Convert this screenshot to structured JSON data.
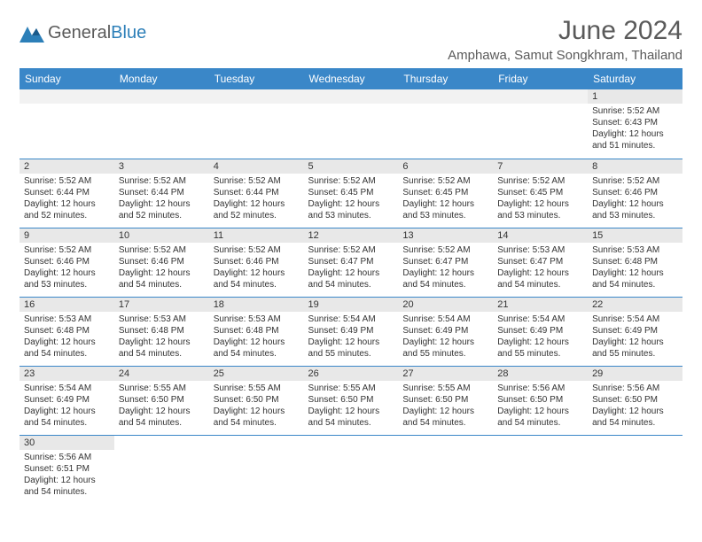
{
  "logo": {
    "text1": "General",
    "text2": "Blue"
  },
  "title": "June 2024",
  "location": "Amphawa, Samut Songkhram, Thailand",
  "colors": {
    "header_bg": "#3a87c8",
    "header_fg": "#ffffff",
    "daynum_bg": "#e8e8e8",
    "border": "#3a87c8",
    "text": "#333333",
    "title_text": "#5a5a5a"
  },
  "weekdays": [
    "Sunday",
    "Monday",
    "Tuesday",
    "Wednesday",
    "Thursday",
    "Friday",
    "Saturday"
  ],
  "weeks": [
    [
      null,
      null,
      null,
      null,
      null,
      null,
      {
        "n": 1,
        "sr": "5:52 AM",
        "ss": "6:43 PM",
        "dl": "12 hours and 51 minutes."
      }
    ],
    [
      {
        "n": 2,
        "sr": "5:52 AM",
        "ss": "6:44 PM",
        "dl": "12 hours and 52 minutes."
      },
      {
        "n": 3,
        "sr": "5:52 AM",
        "ss": "6:44 PM",
        "dl": "12 hours and 52 minutes."
      },
      {
        "n": 4,
        "sr": "5:52 AM",
        "ss": "6:44 PM",
        "dl": "12 hours and 52 minutes."
      },
      {
        "n": 5,
        "sr": "5:52 AM",
        "ss": "6:45 PM",
        "dl": "12 hours and 53 minutes."
      },
      {
        "n": 6,
        "sr": "5:52 AM",
        "ss": "6:45 PM",
        "dl": "12 hours and 53 minutes."
      },
      {
        "n": 7,
        "sr": "5:52 AM",
        "ss": "6:45 PM",
        "dl": "12 hours and 53 minutes."
      },
      {
        "n": 8,
        "sr": "5:52 AM",
        "ss": "6:46 PM",
        "dl": "12 hours and 53 minutes."
      }
    ],
    [
      {
        "n": 9,
        "sr": "5:52 AM",
        "ss": "6:46 PM",
        "dl": "12 hours and 53 minutes."
      },
      {
        "n": 10,
        "sr": "5:52 AM",
        "ss": "6:46 PM",
        "dl": "12 hours and 54 minutes."
      },
      {
        "n": 11,
        "sr": "5:52 AM",
        "ss": "6:46 PM",
        "dl": "12 hours and 54 minutes."
      },
      {
        "n": 12,
        "sr": "5:52 AM",
        "ss": "6:47 PM",
        "dl": "12 hours and 54 minutes."
      },
      {
        "n": 13,
        "sr": "5:52 AM",
        "ss": "6:47 PM",
        "dl": "12 hours and 54 minutes."
      },
      {
        "n": 14,
        "sr": "5:53 AM",
        "ss": "6:47 PM",
        "dl": "12 hours and 54 minutes."
      },
      {
        "n": 15,
        "sr": "5:53 AM",
        "ss": "6:48 PM",
        "dl": "12 hours and 54 minutes."
      }
    ],
    [
      {
        "n": 16,
        "sr": "5:53 AM",
        "ss": "6:48 PM",
        "dl": "12 hours and 54 minutes."
      },
      {
        "n": 17,
        "sr": "5:53 AM",
        "ss": "6:48 PM",
        "dl": "12 hours and 54 minutes."
      },
      {
        "n": 18,
        "sr": "5:53 AM",
        "ss": "6:48 PM",
        "dl": "12 hours and 54 minutes."
      },
      {
        "n": 19,
        "sr": "5:54 AM",
        "ss": "6:49 PM",
        "dl": "12 hours and 55 minutes."
      },
      {
        "n": 20,
        "sr": "5:54 AM",
        "ss": "6:49 PM",
        "dl": "12 hours and 55 minutes."
      },
      {
        "n": 21,
        "sr": "5:54 AM",
        "ss": "6:49 PM",
        "dl": "12 hours and 55 minutes."
      },
      {
        "n": 22,
        "sr": "5:54 AM",
        "ss": "6:49 PM",
        "dl": "12 hours and 55 minutes."
      }
    ],
    [
      {
        "n": 23,
        "sr": "5:54 AM",
        "ss": "6:49 PM",
        "dl": "12 hours and 54 minutes."
      },
      {
        "n": 24,
        "sr": "5:55 AM",
        "ss": "6:50 PM",
        "dl": "12 hours and 54 minutes."
      },
      {
        "n": 25,
        "sr": "5:55 AM",
        "ss": "6:50 PM",
        "dl": "12 hours and 54 minutes."
      },
      {
        "n": 26,
        "sr": "5:55 AM",
        "ss": "6:50 PM",
        "dl": "12 hours and 54 minutes."
      },
      {
        "n": 27,
        "sr": "5:55 AM",
        "ss": "6:50 PM",
        "dl": "12 hours and 54 minutes."
      },
      {
        "n": 28,
        "sr": "5:56 AM",
        "ss": "6:50 PM",
        "dl": "12 hours and 54 minutes."
      },
      {
        "n": 29,
        "sr": "5:56 AM",
        "ss": "6:50 PM",
        "dl": "12 hours and 54 minutes."
      }
    ],
    [
      {
        "n": 30,
        "sr": "5:56 AM",
        "ss": "6:51 PM",
        "dl": "12 hours and 54 minutes."
      },
      null,
      null,
      null,
      null,
      null,
      null
    ]
  ],
  "labels": {
    "sunrise": "Sunrise: ",
    "sunset": "Sunset: ",
    "daylight": "Daylight: "
  }
}
